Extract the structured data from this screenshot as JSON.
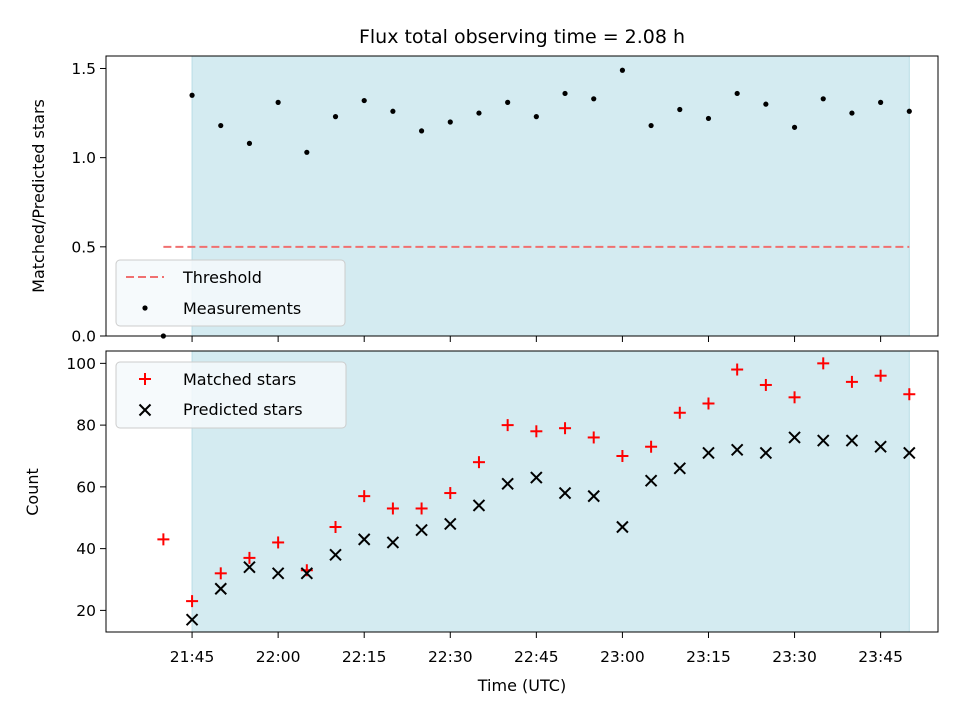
{
  "chart_data": [
    {
      "type": "scatter",
      "title": "Flux total observing time = 2.08 h",
      "ylabel": "Matched/Predicted stars",
      "xlabel": "",
      "ylim": [
        0,
        1.57
      ],
      "xlim": [
        "21:30",
        "23:55"
      ],
      "yticks": [
        {
          "value": 0.0,
          "label": "0.0"
        },
        {
          "value": 0.5,
          "label": "0.5"
        },
        {
          "value": 1.0,
          "label": "1.0"
        },
        {
          "value": 1.5,
          "label": "1.5"
        }
      ],
      "observing_span": [
        "21:45",
        "23:50"
      ],
      "threshold": {
        "name": "Threshold",
        "value": 0.5,
        "x": [
          "21:40",
          "23:50"
        ],
        "color": "#f07070"
      },
      "series": [
        {
          "name": "Measurements",
          "marker": "dot",
          "color": "#000000",
          "x": [
            "21:40",
            "21:45",
            "21:50",
            "21:55",
            "22:00",
            "22:05",
            "22:10",
            "22:15",
            "22:20",
            "22:25",
            "22:30",
            "22:35",
            "22:40",
            "22:45",
            "22:50",
            "22:55",
            "23:00",
            "23:05",
            "23:10",
            "23:15",
            "23:20",
            "23:25",
            "23:30",
            "23:35",
            "23:40",
            "23:45",
            "23:50"
          ],
          "y": [
            0.0,
            1.35,
            1.18,
            1.08,
            1.31,
            1.03,
            1.23,
            1.32,
            1.26,
            1.15,
            1.2,
            1.25,
            1.31,
            1.23,
            1.36,
            1.33,
            1.49,
            1.18,
            1.27,
            1.22,
            1.36,
            1.3,
            1.17,
            1.33,
            1.25,
            1.31,
            1.26
          ]
        }
      ],
      "legend": {
        "placement": "lower-left",
        "entries": [
          "Threshold",
          "Measurements"
        ]
      },
      "grid": false
    },
    {
      "type": "scatter",
      "title": "",
      "xlabel": "Time (UTC)",
      "ylabel": "Count",
      "ylim": [
        13,
        104
      ],
      "xlim": [
        "21:30",
        "23:55"
      ],
      "xticks": [
        "21:45",
        "22:00",
        "22:15",
        "22:30",
        "22:45",
        "23:00",
        "23:15",
        "23:30",
        "23:45"
      ],
      "yticks": [
        {
          "value": 20,
          "label": "20"
        },
        {
          "value": 40,
          "label": "40"
        },
        {
          "value": 60,
          "label": "60"
        },
        {
          "value": 80,
          "label": "80"
        },
        {
          "value": 100,
          "label": "100"
        }
      ],
      "observing_span": [
        "21:45",
        "23:50"
      ],
      "x": [
        "21:40",
        "21:45",
        "21:50",
        "21:55",
        "22:00",
        "22:05",
        "22:10",
        "22:15",
        "22:20",
        "22:25",
        "22:30",
        "22:35",
        "22:40",
        "22:45",
        "22:50",
        "22:55",
        "23:00",
        "23:05",
        "23:10",
        "23:15",
        "23:20",
        "23:25",
        "23:30",
        "23:35",
        "23:40",
        "23:45",
        "23:50"
      ],
      "series": [
        {
          "name": "Matched stars",
          "marker": "plus",
          "color": "#ff0000",
          "values": [
            43,
            23,
            32,
            37,
            42,
            33,
            47,
            57,
            53,
            53,
            58,
            68,
            80,
            78,
            79,
            76,
            70,
            73,
            84,
            87,
            98,
            93,
            89,
            100,
            94,
            96,
            90
          ]
        },
        {
          "name": "Predicted stars",
          "marker": "x",
          "color": "#000000",
          "values": [
            null,
            17,
            27,
            34,
            32,
            32,
            38,
            43,
            42,
            46,
            48,
            54,
            61,
            63,
            58,
            57,
            47,
            62,
            66,
            71,
            72,
            71,
            76,
            75,
            75,
            73,
            71
          ]
        }
      ],
      "legend": {
        "placement": "top-left",
        "entries": [
          "Matched stars",
          "Predicted stars"
        ]
      },
      "grid": false
    }
  ],
  "colors": {
    "span_fill": "#d4ebf1",
    "span_edge": "#b9dde6",
    "legend_bg": "#f5f9fb",
    "legend_border": "#cccccc"
  }
}
